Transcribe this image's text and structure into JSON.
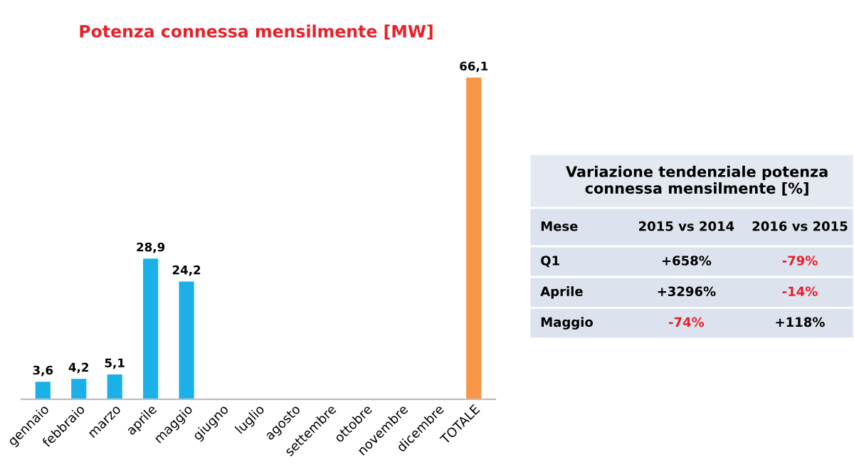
{
  "chart_data": [
    {
      "type": "bar",
      "title": "Potenza connessa mensilmente [MW]",
      "categories": [
        "gennaio",
        "febbraio",
        "marzo",
        "aprile",
        "maggio",
        "giugno",
        "luglio",
        "agosto",
        "settembre",
        "ottobre",
        "novembre",
        "dicembre",
        "TOTALE"
      ],
      "values": [
        3.6,
        4.2,
        5.1,
        28.9,
        24.2,
        null,
        null,
        null,
        null,
        null,
        null,
        null,
        66.1
      ],
      "colors": [
        "#1cb0e8",
        "#1cb0e8",
        "#1cb0e8",
        "#1cb0e8",
        "#1cb0e8",
        "#1cb0e8",
        "#1cb0e8",
        "#1cb0e8",
        "#1cb0e8",
        "#1cb0e8",
        "#1cb0e8",
        "#1cb0e8",
        "#f79646"
      ],
      "value_labels": [
        "3,6",
        "4,2",
        "5,1",
        "28,9",
        "24,2",
        null,
        null,
        null,
        null,
        null,
        null,
        null,
        "66,1"
      ],
      "grid": false,
      "legend": false
    },
    {
      "type": "other",
      "title": "Variazione tendenziale potenza connessa mensilmente [%]",
      "categories": [
        "Mese",
        "2015 vs 2014",
        "2016 vs 2015"
      ],
      "y_categories": [
        "Q1",
        "Aprile",
        "Maggio"
      ],
      "cell_labels": [
        [
          "+658%",
          "-79%"
        ],
        [
          "+3296%",
          "-14%"
        ],
        [
          "-74%",
          "+118%"
        ]
      ],
      "colors": [
        [
          "#000000",
          "#e8202a"
        ],
        [
          "#000000",
          "#e8202a"
        ],
        [
          "#e8202a",
          "#000000"
        ]
      ]
    }
  ]
}
